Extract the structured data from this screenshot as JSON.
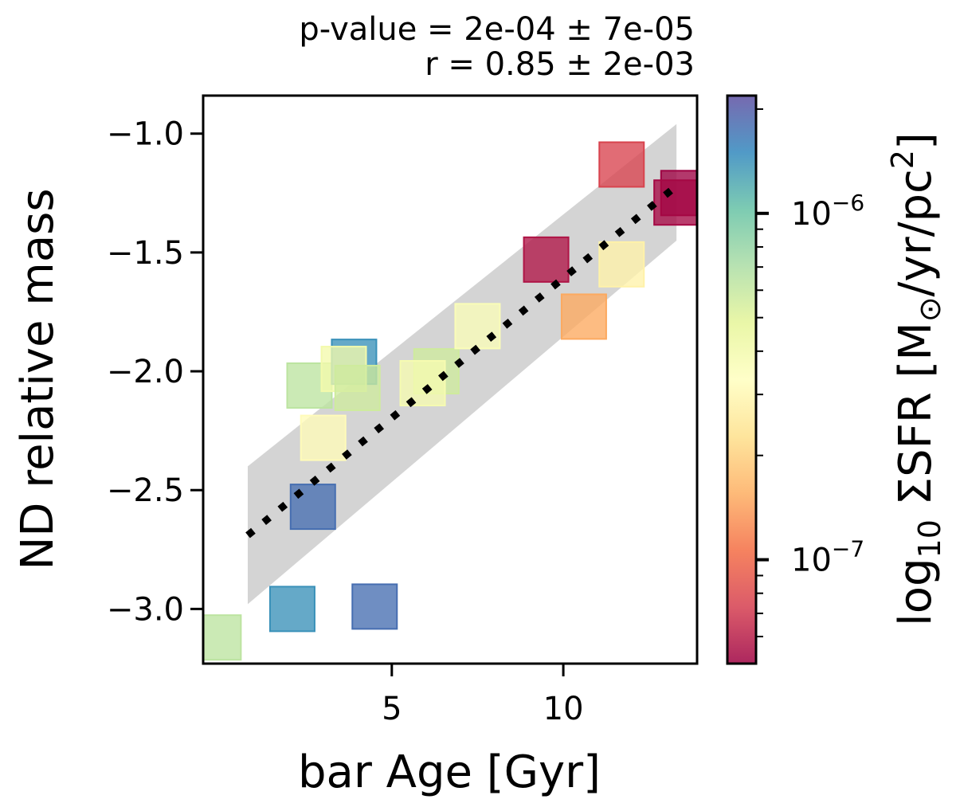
{
  "chart_data": {
    "type": "scatter",
    "title_lines": [
      "p-value = 2e-04 ± 7e-05",
      "r = 0.85 ± 2e-03"
    ],
    "xlabel": "bar Age [Gyr]",
    "ylabel": "ND relative mass",
    "xlim": [
      -0.5,
      13.9
    ],
    "ylim": [
      -3.23,
      -0.84
    ],
    "xticks": [
      5,
      10
    ],
    "yticks": [
      -1.0,
      -1.5,
      -2.0,
      -2.5,
      -3.0
    ],
    "ytick_labels": [
      "−1.0",
      "−1.5",
      "−2.0",
      "−2.5",
      "−3.0"
    ],
    "grid": false,
    "marker": "square",
    "colorbar": {
      "label": "log10 ΣSFR [M⊙/yr/pc2]",
      "colormap": "Spectral",
      "log_min": -7.3,
      "log_max": -5.66,
      "major_ticks": [
        {
          "value": -6,
          "base": "10",
          "exp": "−6"
        },
        {
          "value": -7,
          "base": "10",
          "exp": "−7"
        }
      ]
    },
    "points": [
      {
        "x": -0.05,
        "y": -3.12,
        "sfr_log": -6.2
      },
      {
        "x": 2.1,
        "y": -3.0,
        "sfr_log": -5.85
      },
      {
        "x": 4.5,
        "y": -2.99,
        "sfr_log": -5.75
      },
      {
        "x": 2.7,
        "y": -2.57,
        "sfr_log": -5.75
      },
      {
        "x": 3.0,
        "y": -2.28,
        "sfr_log": -6.5
      },
      {
        "x": 2.6,
        "y": -2.06,
        "sfr_log": -6.2
      },
      {
        "x": 3.9,
        "y": -1.96,
        "sfr_log": -5.85
      },
      {
        "x": 3.6,
        "y": -1.99,
        "sfr_log": -6.4
      },
      {
        "x": 4.0,
        "y": -2.07,
        "sfr_log": -6.25
      },
      {
        "x": 6.3,
        "y": -2.0,
        "sfr_log": -6.25
      },
      {
        "x": 5.9,
        "y": -2.05,
        "sfr_log": -6.42
      },
      {
        "x": 7.5,
        "y": -1.81,
        "sfr_log": -6.45
      },
      {
        "x": 9.5,
        "y": -1.53,
        "sfr_log": -7.25
      },
      {
        "x": 11.7,
        "y": -1.55,
        "sfr_log": -6.55
      },
      {
        "x": 10.6,
        "y": -1.77,
        "sfr_log": -6.82
      },
      {
        "x": 11.7,
        "y": -1.13,
        "sfr_log": -7.12
      },
      {
        "x": 13.5,
        "y": -1.25,
        "sfr_log": -7.3
      },
      {
        "x": 13.3,
        "y": -1.29,
        "sfr_log": -7.28
      }
    ],
    "fit_line": {
      "x": [
        0.8,
        13.3
      ],
      "y": [
        -2.69,
        -1.22
      ],
      "style": "dotted",
      "color": "#000000"
    },
    "confidence_band": {
      "color": "#b0b0b0",
      "x": [
        0.8,
        13.3
      ],
      "upper": [
        -2.4,
        -0.96
      ],
      "lower": [
        -2.98,
        -1.45
      ]
    }
  }
}
